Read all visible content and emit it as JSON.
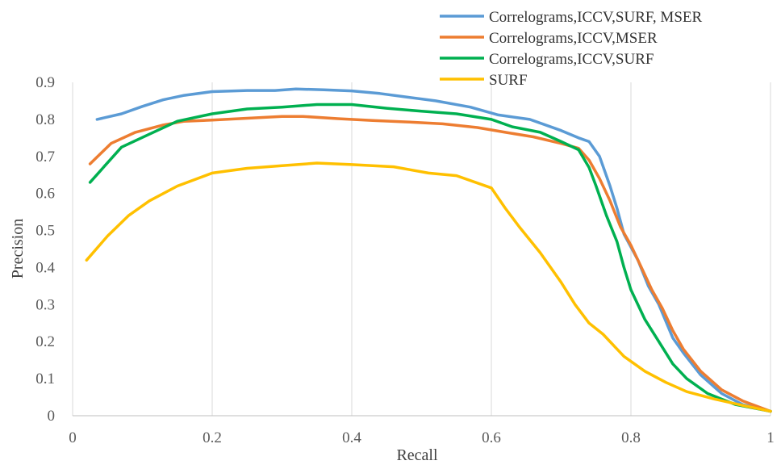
{
  "chart_data": {
    "type": "line",
    "title": "",
    "xlabel": "Recall",
    "ylabel": "Precision",
    "xlim": [
      0,
      1
    ],
    "ylim": [
      0,
      0.9
    ],
    "x_ticks": [
      0,
      0.2,
      0.4,
      0.6,
      0.8,
      1
    ],
    "x_tick_labels": [
      "0",
      "0.2",
      "0.4",
      "0.6",
      "0.8",
      "1"
    ],
    "y_ticks": [
      0,
      0.1,
      0.2,
      0.3,
      0.4,
      0.5,
      0.6,
      0.7,
      0.8,
      0.9
    ],
    "y_tick_labels": [
      "0",
      "0.1",
      "0.2",
      "0.3",
      "0.4",
      "0.5",
      "0.6",
      "0.7",
      "0.8",
      "0.9"
    ],
    "grid": "vertical",
    "legend_position": "top-right",
    "series": [
      {
        "name": "Correlograms,ICCV,SURF, MSER",
        "color": "#5b9bd5",
        "points": [
          [
            0.035,
            0.8
          ],
          [
            0.07,
            0.815
          ],
          [
            0.1,
            0.835
          ],
          [
            0.13,
            0.853
          ],
          [
            0.16,
            0.865
          ],
          [
            0.2,
            0.875
          ],
          [
            0.25,
            0.878
          ],
          [
            0.29,
            0.878
          ],
          [
            0.32,
            0.882
          ],
          [
            0.36,
            0.88
          ],
          [
            0.4,
            0.877
          ],
          [
            0.44,
            0.87
          ],
          [
            0.48,
            0.86
          ],
          [
            0.52,
            0.85
          ],
          [
            0.57,
            0.833
          ],
          [
            0.61,
            0.812
          ],
          [
            0.655,
            0.8
          ],
          [
            0.7,
            0.77
          ],
          [
            0.725,
            0.75
          ],
          [
            0.74,
            0.74
          ],
          [
            0.755,
            0.7
          ],
          [
            0.77,
            0.62
          ],
          [
            0.78,
            0.56
          ],
          [
            0.79,
            0.49
          ],
          [
            0.81,
            0.42
          ],
          [
            0.825,
            0.35
          ],
          [
            0.84,
            0.3
          ],
          [
            0.86,
            0.21
          ],
          [
            0.875,
            0.17
          ],
          [
            0.9,
            0.11
          ],
          [
            0.93,
            0.06
          ],
          [
            0.96,
            0.03
          ],
          [
            1.0,
            0.012
          ]
        ]
      },
      {
        "name": "Correlograms,ICCV,MSER",
        "color": "#ed7d31",
        "points": [
          [
            0.025,
            0.68
          ],
          [
            0.055,
            0.735
          ],
          [
            0.09,
            0.765
          ],
          [
            0.13,
            0.785
          ],
          [
            0.16,
            0.795
          ],
          [
            0.2,
            0.798
          ],
          [
            0.25,
            0.803
          ],
          [
            0.3,
            0.808
          ],
          [
            0.33,
            0.808
          ],
          [
            0.38,
            0.802
          ],
          [
            0.43,
            0.797
          ],
          [
            0.48,
            0.793
          ],
          [
            0.53,
            0.788
          ],
          [
            0.58,
            0.778
          ],
          [
            0.62,
            0.765
          ],
          [
            0.66,
            0.753
          ],
          [
            0.7,
            0.735
          ],
          [
            0.725,
            0.722
          ],
          [
            0.74,
            0.69
          ],
          [
            0.755,
            0.64
          ],
          [
            0.77,
            0.58
          ],
          [
            0.785,
            0.51
          ],
          [
            0.8,
            0.46
          ],
          [
            0.815,
            0.4
          ],
          [
            0.83,
            0.34
          ],
          [
            0.845,
            0.29
          ],
          [
            0.86,
            0.23
          ],
          [
            0.875,
            0.18
          ],
          [
            0.9,
            0.12
          ],
          [
            0.93,
            0.07
          ],
          [
            0.96,
            0.04
          ],
          [
            1.0,
            0.012
          ]
        ]
      },
      {
        "name": "Correlograms,ICCV,SURF",
        "color": "#00b050",
        "points": [
          [
            0.025,
            0.63
          ],
          [
            0.07,
            0.725
          ],
          [
            0.11,
            0.76
          ],
          [
            0.15,
            0.795
          ],
          [
            0.2,
            0.815
          ],
          [
            0.25,
            0.828
          ],
          [
            0.3,
            0.833
          ],
          [
            0.35,
            0.84
          ],
          [
            0.4,
            0.84
          ],
          [
            0.45,
            0.83
          ],
          [
            0.5,
            0.822
          ],
          [
            0.55,
            0.815
          ],
          [
            0.6,
            0.8
          ],
          [
            0.63,
            0.78
          ],
          [
            0.67,
            0.765
          ],
          [
            0.7,
            0.74
          ],
          [
            0.725,
            0.718
          ],
          [
            0.74,
            0.67
          ],
          [
            0.75,
            0.62
          ],
          [
            0.765,
            0.54
          ],
          [
            0.78,
            0.47
          ],
          [
            0.79,
            0.4
          ],
          [
            0.8,
            0.34
          ],
          [
            0.82,
            0.26
          ],
          [
            0.84,
            0.2
          ],
          [
            0.86,
            0.14
          ],
          [
            0.88,
            0.1
          ],
          [
            0.91,
            0.06
          ],
          [
            0.95,
            0.03
          ],
          [
            1.0,
            0.012
          ]
        ]
      },
      {
        "name": "SURF",
        "color": "#ffc000",
        "points": [
          [
            0.02,
            0.42
          ],
          [
            0.05,
            0.485
          ],
          [
            0.08,
            0.54
          ],
          [
            0.11,
            0.58
          ],
          [
            0.15,
            0.62
          ],
          [
            0.2,
            0.655
          ],
          [
            0.25,
            0.668
          ],
          [
            0.3,
            0.675
          ],
          [
            0.35,
            0.682
          ],
          [
            0.4,
            0.678
          ],
          [
            0.46,
            0.672
          ],
          [
            0.51,
            0.655
          ],
          [
            0.55,
            0.648
          ],
          [
            0.6,
            0.615
          ],
          [
            0.62,
            0.56
          ],
          [
            0.64,
            0.51
          ],
          [
            0.67,
            0.44
          ],
          [
            0.7,
            0.36
          ],
          [
            0.72,
            0.3
          ],
          [
            0.74,
            0.25
          ],
          [
            0.76,
            0.22
          ],
          [
            0.79,
            0.16
          ],
          [
            0.82,
            0.12
          ],
          [
            0.85,
            0.09
          ],
          [
            0.88,
            0.065
          ],
          [
            0.92,
            0.045
          ],
          [
            0.96,
            0.028
          ],
          [
            1.0,
            0.012
          ]
        ]
      }
    ]
  }
}
